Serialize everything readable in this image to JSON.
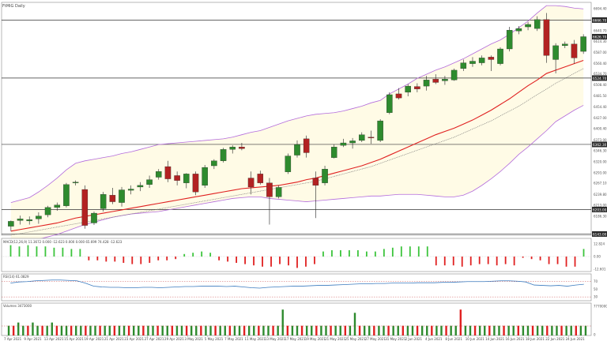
{
  "chart_data": {
    "type": "candlestick",
    "title": "FtMiG Daily",
    "colors": {
      "up": "#2e8b2e",
      "down": "#b22222",
      "band_fill": "#fffbe6",
      "bollinger": "#b36bdb",
      "ma_red": "#e02020",
      "ma_dotted": "#707070",
      "rsi_line": "#3b7bbf"
    },
    "x_ticks": [
      "7 Apr 2021",
      "9 Apr 2021",
      "13 Apr 2021",
      "15 Apr 2021",
      "19 Apr 2021",
      "21 Apr 2021",
      "23 Apr 2021",
      "27 Apr 2021",
      "29 Apr 2021",
      "3 May 2021",
      "5 May 2021",
      "7 May 2021",
      "11 May 2021",
      "13 May 2021",
      "17 May 2021",
      "19 May 2021",
      "21 May 2021",
      "25 May 2021",
      "27 May 2021",
      "31 May 2021",
      "2 Jun 2021",
      "4 Jun 2021",
      "8 Jun 2021",
      "10 Jun 2021",
      "14 Jun 2021",
      "16 Jun 2021",
      "18 Jun 2021",
      "22 Jun 2021",
      "24 Jun 2021"
    ],
    "y_ticks": [
      "6694.40",
      "6640.70",
      "6614.30",
      "6587.00",
      "6560.40",
      "6534.70",
      "6508.40",
      "6481.50",
      "6454.40",
      "6427.00",
      "6400.40",
      "6373.00",
      "6346.30",
      "6320.00",
      "6293.00",
      "6267.10",
      "6239.80",
      "6213.00",
      "6186.30"
    ],
    "ylim": [
      6140,
      6710
    ],
    "horizontal_lines": [
      {
        "price": 6666.7,
        "label": "6666.70"
      },
      {
        "price": 6524.7,
        "label": "6524.70"
      },
      {
        "price": 6362.3,
        "label": "6362.30"
      },
      {
        "price": 6203.0,
        "label": "6203.00"
      },
      {
        "price": 6143.0,
        "label": "6143.00"
      }
    ],
    "last_price_label": "6626.70",
    "candles": [
      {
        "o": 6162,
        "h": 6176,
        "l": 6150,
        "c": 6174
      },
      {
        "o": 6176,
        "h": 6188,
        "l": 6166,
        "c": 6180
      },
      {
        "o": 6175,
        "h": 6186,
        "l": 6166,
        "c": 6178
      },
      {
        "o": 6180,
        "h": 6196,
        "l": 6168,
        "c": 6187
      },
      {
        "o": 6190,
        "h": 6212,
        "l": 6184,
        "c": 6208
      },
      {
        "o": 6208,
        "h": 6220,
        "l": 6200,
        "c": 6214
      },
      {
        "o": 6212,
        "h": 6268,
        "l": 6208,
        "c": 6264
      },
      {
        "o": 6268,
        "h": 6274,
        "l": 6262,
        "c": 6270
      },
      {
        "o": 6252,
        "h": 6262,
        "l": 6156,
        "c": 6164
      },
      {
        "o": 6170,
        "h": 6198,
        "l": 6165,
        "c": 6194
      },
      {
        "o": 6205,
        "h": 6246,
        "l": 6198,
        "c": 6240
      },
      {
        "o": 6238,
        "h": 6256,
        "l": 6216,
        "c": 6222
      },
      {
        "o": 6220,
        "h": 6258,
        "l": 6210,
        "c": 6251
      },
      {
        "o": 6250,
        "h": 6262,
        "l": 6240,
        "c": 6253
      },
      {
        "o": 6258,
        "h": 6270,
        "l": 6248,
        "c": 6262
      },
      {
        "o": 6264,
        "h": 6286,
        "l": 6256,
        "c": 6276
      },
      {
        "o": 6282,
        "h": 6302,
        "l": 6276,
        "c": 6296
      },
      {
        "o": 6308,
        "h": 6322,
        "l": 6270,
        "c": 6278
      },
      {
        "o": 6286,
        "h": 6296,
        "l": 6262,
        "c": 6274
      },
      {
        "o": 6268,
        "h": 6292,
        "l": 6255,
        "c": 6290
      },
      {
        "o": 6290,
        "h": 6296,
        "l": 6238,
        "c": 6246
      },
      {
        "o": 6262,
        "h": 6312,
        "l": 6256,
        "c": 6306
      },
      {
        "o": 6310,
        "h": 6326,
        "l": 6302,
        "c": 6322
      },
      {
        "o": 6322,
        "h": 6354,
        "l": 6318,
        "c": 6350
      },
      {
        "o": 6350,
        "h": 6360,
        "l": 6340,
        "c": 6356
      },
      {
        "o": 6356,
        "h": 6366,
        "l": 6348,
        "c": 6352
      },
      {
        "o": 6280,
        "h": 6296,
        "l": 6240,
        "c": 6258
      },
      {
        "o": 6290,
        "h": 6298,
        "l": 6264,
        "c": 6268
      },
      {
        "o": 6268,
        "h": 6280,
        "l": 6166,
        "c": 6234
      },
      {
        "o": 6234,
        "h": 6262,
        "l": 6230,
        "c": 6257
      },
      {
        "o": 6295,
        "h": 6340,
        "l": 6290,
        "c": 6334
      },
      {
        "o": 6336,
        "h": 6372,
        "l": 6330,
        "c": 6362
      },
      {
        "o": 6376,
        "h": 6384,
        "l": 6330,
        "c": 6342
      },
      {
        "o": 6280,
        "h": 6296,
        "l": 6182,
        "c": 6262
      },
      {
        "o": 6268,
        "h": 6310,
        "l": 6262,
        "c": 6302
      },
      {
        "o": 6330,
        "h": 6362,
        "l": 6328,
        "c": 6356
      },
      {
        "o": 6360,
        "h": 6376,
        "l": 6356,
        "c": 6366
      },
      {
        "o": 6366,
        "h": 6378,
        "l": 6352,
        "c": 6371
      },
      {
        "o": 6372,
        "h": 6392,
        "l": 6368,
        "c": 6386
      },
      {
        "o": 6380,
        "h": 6396,
        "l": 6364,
        "c": 6378
      },
      {
        "o": 6372,
        "h": 6424,
        "l": 6368,
        "c": 6420
      },
      {
        "o": 6440,
        "h": 6490,
        "l": 6436,
        "c": 6484
      },
      {
        "o": 6486,
        "h": 6500,
        "l": 6472,
        "c": 6476
      },
      {
        "o": 6490,
        "h": 6510,
        "l": 6480,
        "c": 6505
      },
      {
        "o": 6504,
        "h": 6512,
        "l": 6490,
        "c": 6498
      },
      {
        "o": 6505,
        "h": 6530,
        "l": 6494,
        "c": 6520
      },
      {
        "o": 6522,
        "h": 6534,
        "l": 6510,
        "c": 6514
      },
      {
        "o": 6518,
        "h": 6530,
        "l": 6508,
        "c": 6522
      },
      {
        "o": 6520,
        "h": 6548,
        "l": 6518,
        "c": 6544
      },
      {
        "o": 6548,
        "h": 6570,
        "l": 6542,
        "c": 6562
      },
      {
        "o": 6560,
        "h": 6576,
        "l": 6552,
        "c": 6566
      },
      {
        "o": 6562,
        "h": 6580,
        "l": 6556,
        "c": 6574
      },
      {
        "o": 6576,
        "h": 6580,
        "l": 6542,
        "c": 6570
      },
      {
        "o": 6560,
        "h": 6600,
        "l": 6556,
        "c": 6596
      },
      {
        "o": 6596,
        "h": 6650,
        "l": 6590,
        "c": 6642
      },
      {
        "o": 6640,
        "h": 6652,
        "l": 6632,
        "c": 6646
      },
      {
        "o": 6650,
        "h": 6662,
        "l": 6642,
        "c": 6656
      },
      {
        "o": 6646,
        "h": 6676,
        "l": 6640,
        "c": 6668
      },
      {
        "o": 6668,
        "h": 6684,
        "l": 6562,
        "c": 6580
      },
      {
        "o": 6570,
        "h": 6610,
        "l": 6536,
        "c": 6604
      },
      {
        "o": 6604,
        "h": 6614,
        "l": 6598,
        "c": 6608
      },
      {
        "o": 6608,
        "h": 6618,
        "l": 6560,
        "c": 6574
      },
      {
        "o": 6590,
        "h": 6632,
        "l": 6584,
        "c": 6626
      }
    ],
    "bollinger_upper": [
      6220,
      6226,
      6232,
      6246,
      6262,
      6280,
      6300,
      6316,
      6322,
      6326,
      6330,
      6334,
      6340,
      6344,
      6350,
      6356,
      6362,
      6364,
      6366,
      6368,
      6370,
      6372,
      6374,
      6376,
      6380,
      6386,
      6392,
      6396,
      6404,
      6412,
      6420,
      6426,
      6432,
      6436,
      6438,
      6440,
      6444,
      6450,
      6456,
      6464,
      6470,
      6486,
      6498,
      6510,
      6524,
      6534,
      6544,
      6552,
      6562,
      6572,
      6584,
      6596,
      6608,
      6618,
      6632,
      6648,
      6664,
      6684,
      6702,
      6702,
      6700,
      6696,
      6694
    ],
    "bollinger_lower": [
      6120,
      6122,
      6126,
      6130,
      6136,
      6142,
      6150,
      6158,
      6166,
      6172,
      6178,
      6184,
      6188,
      6192,
      6194,
      6196,
      6198,
      6202,
      6206,
      6210,
      6214,
      6218,
      6222,
      6226,
      6230,
      6232,
      6234,
      6234,
      6230,
      6228,
      6226,
      6224,
      6222,
      6224,
      6226,
      6228,
      6230,
      6232,
      6234,
      6236,
      6236,
      6238,
      6240,
      6240,
      6240,
      6238,
      6236,
      6234,
      6234,
      6238,
      6248,
      6262,
      6278,
      6296,
      6316,
      6338,
      6356,
      6376,
      6396,
      6418,
      6432,
      6446,
      6458
    ],
    "ma_red": [
      6150,
      6154,
      6158,
      6162,
      6166,
      6170,
      6176,
      6182,
      6186,
      6190,
      6194,
      6198,
      6202,
      6206,
      6210,
      6214,
      6218,
      6222,
      6226,
      6230,
      6234,
      6238,
      6242,
      6246,
      6250,
      6254,
      6256,
      6258,
      6260,
      6262,
      6266,
      6270,
      6276,
      6280,
      6286,
      6292,
      6298,
      6304,
      6310,
      6318,
      6326,
      6336,
      6346,
      6356,
      6366,
      6376,
      6386,
      6394,
      6402,
      6412,
      6422,
      6434,
      6446,
      6460,
      6474,
      6490,
      6506,
      6520,
      6536,
      6544,
      6552,
      6560,
      6568
    ],
    "ma_dotted": [
      6140,
      6144,
      6148,
      6152,
      6156,
      6160,
      6164,
      6168,
      6172,
      6176,
      6180,
      6184,
      6188,
      6192,
      6196,
      6200,
      6204,
      6208,
      6212,
      6216,
      6220,
      6224,
      6228,
      6232,
      6236,
      6240,
      6244,
      6248,
      6252,
      6256,
      6260,
      6264,
      6268,
      6272,
      6278,
      6284,
      6290,
      6296,
      6302,
      6308,
      6316,
      6324,
      6332,
      6340,
      6348,
      6356,
      6364,
      6372,
      6380,
      6390,
      6400,
      6410,
      6420,
      6432,
      6444,
      6456,
      6470,
      6484,
      6498,
      6512,
      6524,
      6536,
      6548
    ],
    "macd": {
      "label": "MACD(12,26,9) 11.3672 0.000 -12.623 0.000 0.000 65.699 74.428 -12.623",
      "ticks": [
        "12.824",
        "0.00",
        "-12.601"
      ],
      "bars": [
        9,
        8,
        9,
        8,
        8,
        7,
        7,
        6,
        6,
        -3,
        -3,
        -4,
        -4,
        -5,
        -6,
        -6,
        -5,
        -3,
        -3,
        -2,
        2,
        3,
        4,
        3,
        -3,
        -4,
        -5,
        -6,
        -7,
        -8,
        -8,
        -6,
        -7,
        -9,
        -8,
        -6,
        4,
        5,
        5,
        5,
        5,
        4,
        4,
        6,
        7,
        8,
        8,
        8,
        8,
        -7,
        -7,
        -7,
        -8,
        -7,
        -6,
        -6,
        -7,
        -6,
        -7,
        -1,
        -2,
        -3,
        -6,
        -6,
        -8,
        -8,
        6
      ]
    },
    "rsi": {
      "label": "RSI(14) 61.0829",
      "ticks": [
        "70",
        "50",
        "30"
      ],
      "values": [
        66,
        69,
        70,
        72,
        73,
        74,
        74,
        73,
        72,
        66,
        58,
        56,
        55,
        55,
        54,
        54,
        55,
        55,
        54,
        55,
        56,
        57,
        57,
        58,
        58,
        58,
        57,
        58,
        56,
        54,
        53,
        55,
        56,
        57,
        58,
        58,
        59,
        60,
        60,
        61,
        62,
        63,
        64,
        64,
        65,
        65,
        66,
        66,
        66,
        67,
        67,
        67,
        68,
        68,
        69,
        70,
        70,
        70,
        71,
        72,
        72,
        71,
        69,
        61,
        60,
        59,
        60,
        58,
        61,
        63
      ]
    },
    "volume": {
      "label": "Volumes 3473000",
      "ticks": [
        "7770000",
        "0"
      ],
      "values": [
        3,
        3,
        4,
        3,
        3,
        4,
        3,
        3,
        3,
        4,
        3,
        3,
        3,
        3,
        3,
        3,
        3,
        3,
        3,
        3,
        3,
        3,
        3,
        3,
        3,
        3,
        3,
        3,
        3,
        3,
        3,
        3,
        3,
        3,
        3,
        3,
        3,
        3,
        3,
        3,
        3,
        3,
        3,
        3,
        3,
        3,
        3,
        3,
        3,
        3,
        3,
        3,
        3,
        3,
        3,
        3,
        3,
        8,
        3,
        3,
        3,
        3,
        3,
        3,
        3,
        3,
        3,
        3,
        3,
        3,
        3,
        3,
        7,
        3,
        3,
        3,
        3,
        3,
        3,
        3,
        3,
        3,
        3,
        3,
        3,
        3,
        3,
        3,
        3,
        3,
        3,
        3,
        3,
        3,
        8,
        3,
        3,
        3,
        3,
        3,
        3,
        3,
        3,
        3,
        3,
        3,
        3,
        3,
        3,
        3,
        3,
        3,
        3,
        3,
        3,
        3,
        3,
        3,
        3,
        3,
        3
      ],
      "up_flags": []
    }
  }
}
